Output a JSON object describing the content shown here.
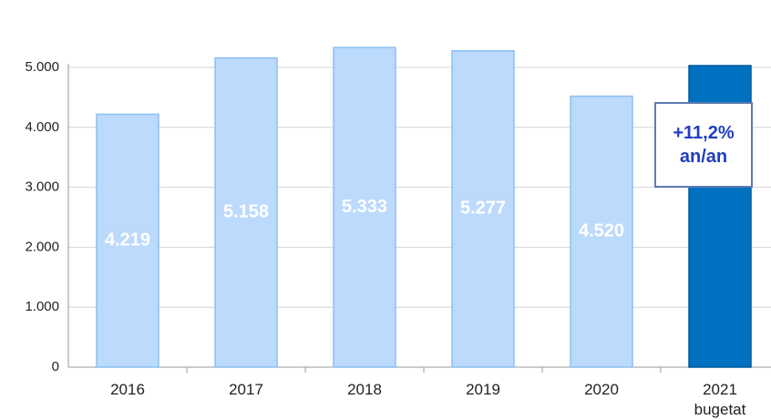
{
  "chart_data": {
    "type": "bar",
    "categories": [
      "2016",
      "2017",
      "2018",
      "2019",
      "2020",
      "2021 bugetat"
    ],
    "values": [
      4219,
      5158,
      5333,
      5277,
      4520,
      5030
    ],
    "value_labels": [
      "4.219",
      "5.158",
      "5.333",
      "5.277",
      "4.520",
      null
    ],
    "colors": [
      "#bcdafc",
      "#bcdafc",
      "#bcdafc",
      "#bcdafc",
      "#bcdafc",
      "#0070c0"
    ],
    "ylim": [
      0,
      5000
    ],
    "yticks": [
      0,
      {
        "value": 1000,
        "label": "1.000"
      },
      {
        "value": 2000,
        "label": "2.000"
      },
      {
        "value": 3000,
        "label": "3.000"
      },
      {
        "value": 4000,
        "label": "4.000"
      },
      {
        "value": 5000,
        "label": "5.000"
      }
    ],
    "grid": true,
    "annotation": "+11,2% an/an"
  }
}
